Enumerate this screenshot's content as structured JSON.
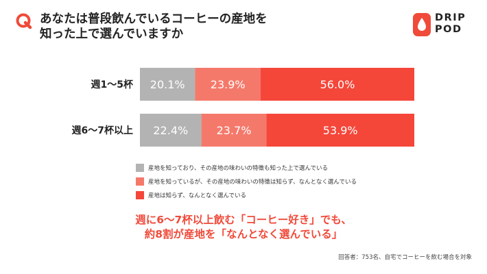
{
  "header": {
    "q_label": "Q",
    "title_line1": "あなたは普段飲んでいるコーヒーの産地を",
    "title_line2": "知った上で選んでいますか",
    "brand_line1": "DRIP",
    "brand_line2": "POD",
    "brand_logo_icon": "drop-icon"
  },
  "colors": {
    "accent": "#f04a3a",
    "gray": "#b3b3b3",
    "light_red": "#f5796b",
    "red": "#f5463a"
  },
  "chart_data": {
    "type": "bar",
    "orientation": "horizontal",
    "stacked": true,
    "normalized": true,
    "categories": [
      "週1〜5杯",
      "週6〜7杯以上"
    ],
    "series": [
      {
        "name": "産地を知っており、その産地の味わいの特徴も知った上で選んでいる",
        "color": "#b3b3b3",
        "values": [
          20.1,
          22.4
        ],
        "labels": [
          "20.1%",
          "22.4%"
        ]
      },
      {
        "name": "産地を知っているが、その産地の味わいの特徴は知らず、なんとなく選んでいる",
        "color": "#f5796b",
        "values": [
          23.9,
          23.7
        ],
        "labels": [
          "23.9%",
          "23.7%"
        ]
      },
      {
        "name": "産地は知らず、なんとなく選んでいる",
        "color": "#f5463a",
        "values": [
          56.0,
          53.9
        ],
        "labels": [
          "56.0%",
          "53.9%"
        ]
      }
    ],
    "xlim": [
      0,
      100
    ],
    "legend_position": "bottom",
    "grid": false
  },
  "callout": {
    "line1": "週に6〜7杯以上飲む「コーヒー好き」でも、",
    "line2": "約8割が産地を「なんとなく選んでいる」"
  },
  "footnote": "回答者：753名、自宅でコーヒーを飲む場合を対象"
}
